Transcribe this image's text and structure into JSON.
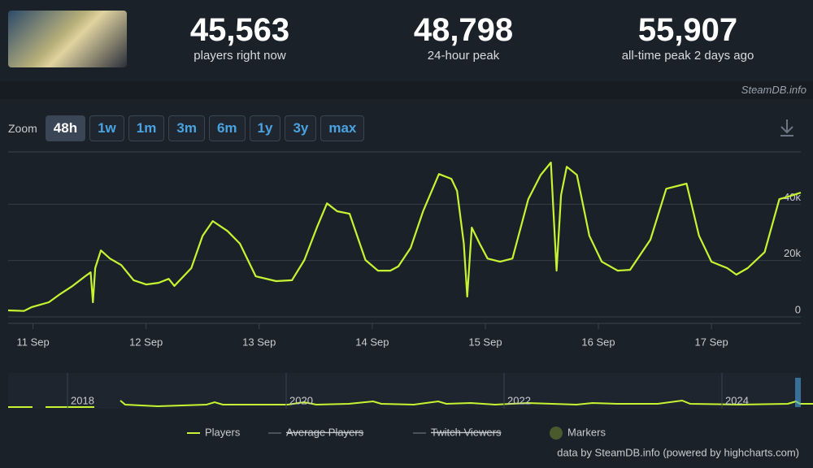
{
  "header": {
    "stats": [
      {
        "value": "45,563",
        "label": "players right now"
      },
      {
        "value": "48,798",
        "label": "24-hour peak"
      },
      {
        "value": "55,907",
        "label": "all-time peak 2 days ago"
      }
    ],
    "source": "SteamDB.info"
  },
  "zoom": {
    "label": "Zoom",
    "buttons": [
      "48h",
      "1w",
      "1m",
      "3m",
      "6m",
      "1y",
      "3y",
      "max"
    ]
  },
  "navigator": {
    "labels": [
      "2018",
      "2020",
      "2022",
      "2024"
    ]
  },
  "legend": [
    {
      "name": "Players",
      "enabled": true
    },
    {
      "name": "Average Players",
      "enabled": false
    },
    {
      "name": "Twitch Viewers",
      "enabled": false
    },
    {
      "name": "Markers",
      "enabled": true
    }
  ],
  "credit": "data by SteamDB.info (powered by highcharts.com)",
  "chart_data": {
    "type": "line",
    "x": [
      10.78,
      10.92,
      10.99,
      11.14,
      11.24,
      11.35,
      11.46,
      11.51,
      11.53,
      11.55,
      11.6,
      11.68,
      11.78,
      11.89,
      12.0,
      12.11,
      12.2,
      12.25,
      12.4,
      12.5,
      12.59,
      12.72,
      12.83,
      12.97,
      13.15,
      13.29,
      13.4,
      13.51,
      13.6,
      13.69,
      13.8,
      13.94,
      14.05,
      14.16,
      14.23,
      14.34,
      14.45,
      14.59,
      14.7,
      14.75,
      14.81,
      14.84,
      14.88,
      14.95,
      15.02,
      15.13,
      15.24,
      15.38,
      15.49,
      15.58,
      15.61,
      15.63,
      15.67,
      15.72,
      15.81,
      15.92,
      16.03,
      16.17,
      16.28,
      16.46,
      16.6,
      16.78,
      16.89,
      17.0,
      17.14,
      17.22,
      17.32,
      17.47,
      17.6,
      17.68,
      17.79
    ],
    "series": [
      {
        "name": "Players",
        "color": "#c6f432",
        "values": [
          2300,
          2100,
          3500,
          5200,
          8100,
          11000,
          14400,
          15800,
          5200,
          17300,
          23600,
          20700,
          18400,
          13000,
          11500,
          12100,
          13500,
          11000,
          17300,
          28800,
          34000,
          30500,
          26000,
          14400,
          12700,
          13000,
          20200,
          31700,
          40300,
          37500,
          36600,
          20200,
          16400,
          16400,
          17900,
          24500,
          37500,
          50700,
          49000,
          44700,
          26000,
          7200,
          31700,
          26000,
          20700,
          19600,
          20700,
          41800,
          50400,
          54800,
          31700,
          16400,
          43200,
          53300,
          50400,
          28800,
          19600,
          16400,
          16700,
          27400,
          45500,
          47300,
          28800,
          19600,
          17300,
          15000,
          17300,
          23000,
          41800,
          42700,
          44100
        ]
      }
    ],
    "xlim": [
      10.78,
      17.79
    ],
    "xticks": [
      {
        "value": 11,
        "label": "11 Sep"
      },
      {
        "value": 12,
        "label": "12 Sep"
      },
      {
        "value": 13,
        "label": "13 Sep"
      },
      {
        "value": 14,
        "label": "14 Sep"
      },
      {
        "value": 15,
        "label": "15 Sep"
      },
      {
        "value": 16,
        "label": "16 Sep"
      },
      {
        "value": 17,
        "label": "17 Sep"
      }
    ],
    "ylim": [
      0,
      60000
    ],
    "yticks": [
      0,
      {
        "value": 20000,
        "label": "20k"
      },
      {
        "value": 40000,
        "label": "40k"
      }
    ],
    "grid": true
  }
}
